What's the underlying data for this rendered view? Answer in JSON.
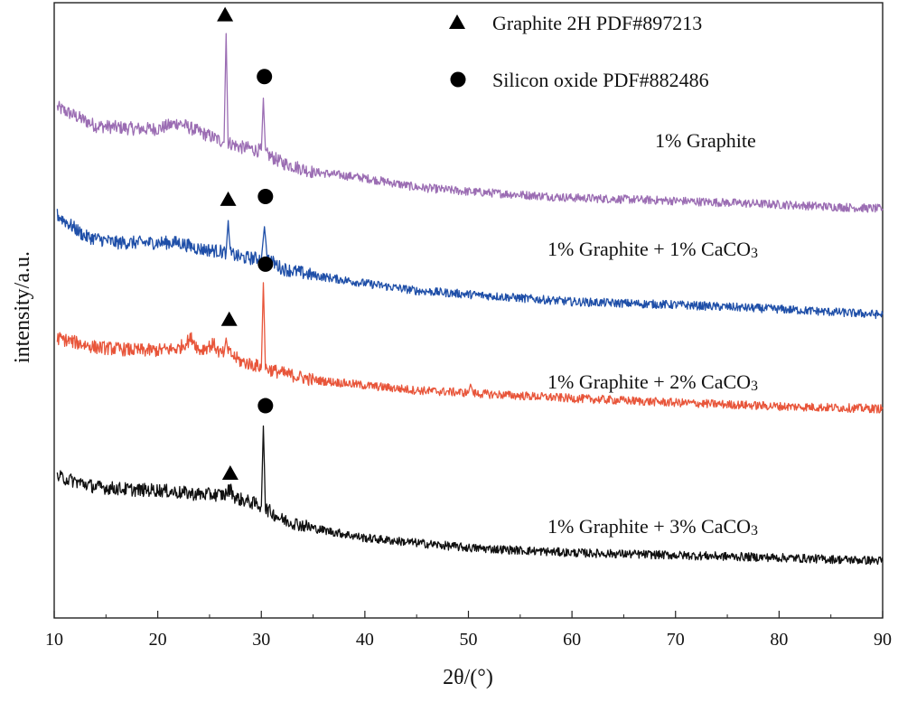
{
  "chart_data": {
    "type": "line",
    "title": "",
    "xlabel": "2θ/(°)",
    "ylabel": "intensity/a.u.",
    "xlim": [
      10,
      90
    ],
    "ylim": [
      0,
      100
    ],
    "x_ticks": [
      "10",
      "20",
      "30",
      "40",
      "50",
      "60",
      "70",
      "80",
      "90"
    ],
    "y_ticks_shown": false,
    "grid": false,
    "legend": {
      "position": "top-right",
      "entries": [
        {
          "marker": "triangle",
          "label": "Graphite 2H PDF#897213"
        },
        {
          "marker": "circle",
          "label": "Silicon oxide PDF#882486"
        }
      ]
    },
    "series": [
      {
        "name": "1% Graphite",
        "color": "#9b6db3",
        "points": [
          [
            10.3,
            83.0
          ],
          [
            14,
            80.0
          ],
          [
            18,
            79.5
          ],
          [
            20,
            79.5
          ],
          [
            22,
            80.5
          ],
          [
            24,
            79.0
          ],
          [
            25.5,
            78.0
          ],
          [
            26.4,
            77.3
          ],
          [
            26.6,
            95.0
          ],
          [
            26.8,
            77.3
          ],
          [
            28,
            76.5
          ],
          [
            29,
            76.3
          ],
          [
            29.5,
            76.0
          ],
          [
            30.0,
            76.0
          ],
          [
            30.2,
            84.5
          ],
          [
            30.4,
            75.5
          ],
          [
            32,
            74.0
          ],
          [
            35,
            72.5
          ],
          [
            40,
            71.5
          ],
          [
            45,
            70.0
          ],
          [
            50,
            69.3
          ],
          [
            60,
            68.3
          ],
          [
            70,
            67.8
          ],
          [
            80,
            67.2
          ],
          [
            90,
            66.5
          ]
        ],
        "label_text": "1% Graphite"
      },
      {
        "name": "1% Graphite + 1% CaCO3",
        "color": "#1f4fa8",
        "points": [
          [
            10.3,
            65.5
          ],
          [
            13,
            62.0
          ],
          [
            16,
            61.0
          ],
          [
            20,
            61.0
          ],
          [
            22,
            61.0
          ],
          [
            24,
            60.0
          ],
          [
            26.0,
            59.6
          ],
          [
            26.6,
            59.4
          ],
          [
            26.8,
            64.6
          ],
          [
            27.0,
            59.2
          ],
          [
            28,
            58.6
          ],
          [
            30.0,
            58.4
          ],
          [
            30.3,
            63.6
          ],
          [
            30.6,
            58.4
          ],
          [
            32,
            56.8
          ],
          [
            35,
            55.7
          ],
          [
            40,
            54.4
          ],
          [
            45,
            53.2
          ],
          [
            50,
            52.6
          ],
          [
            60,
            51.4
          ],
          [
            70,
            50.9
          ],
          [
            80,
            50.2
          ],
          [
            90,
            49.3
          ]
        ],
        "label_text": "1% Graphite + 1% CaCO3"
      },
      {
        "name": "1% Graphite + 2% CaCO3",
        "color": "#e8553a",
        "points": [
          [
            10.3,
            45.5
          ],
          [
            14,
            44.0
          ],
          [
            18,
            43.5
          ],
          [
            20,
            43.5
          ],
          [
            22,
            43.8
          ],
          [
            23.3,
            45.5
          ],
          [
            24,
            43.5
          ],
          [
            25.4,
            44.5
          ],
          [
            26.0,
            43.0
          ],
          [
            26.4,
            43.0
          ],
          [
            26.6,
            45.5
          ],
          [
            26.8,
            43.2
          ],
          [
            28,
            41.7
          ],
          [
            30.0,
            40.8
          ],
          [
            30.2,
            54.5
          ],
          [
            30.4,
            40.6
          ],
          [
            32,
            39.8
          ],
          [
            35,
            38.7
          ],
          [
            40,
            37.8
          ],
          [
            45,
            37.0
          ],
          [
            50,
            36.6
          ],
          [
            50.2,
            38.0
          ],
          [
            50.5,
            36.5
          ],
          [
            60,
            35.7
          ],
          [
            70,
            35.0
          ],
          [
            80,
            34.4
          ],
          [
            90,
            34.0
          ]
        ],
        "label_text": "1% Graphite + 2% CaCO3"
      },
      {
        "name": "1% Graphite + 3% CaCO3",
        "color": "#111111",
        "points": [
          [
            10.3,
            23.0
          ],
          [
            14,
            21.3
          ],
          [
            18,
            20.8
          ],
          [
            20,
            20.8
          ],
          [
            22,
            20.4
          ],
          [
            24,
            20.1
          ],
          [
            26.5,
            20.0
          ],
          [
            27.0,
            21.0
          ],
          [
            27.5,
            19.5
          ],
          [
            29,
            18.8
          ],
          [
            30.0,
            18.2
          ],
          [
            30.2,
            31.2
          ],
          [
            30.4,
            17.8
          ],
          [
            32,
            16.0
          ],
          [
            35,
            14.6
          ],
          [
            40,
            13.0
          ],
          [
            45,
            12.2
          ],
          [
            50,
            11.4
          ],
          [
            60,
            10.6
          ],
          [
            70,
            10.2
          ],
          [
            80,
            9.8
          ],
          [
            90,
            9.3
          ]
        ],
        "label_text": "1% Graphite + 3% CaCO3"
      }
    ],
    "annotations": [
      {
        "series": 0,
        "marker": "triangle",
        "x": 26.5,
        "y": 98.0
      },
      {
        "series": 0,
        "marker": "circle",
        "x": 30.3,
        "y": 88.0
      },
      {
        "series": 1,
        "marker": "triangle",
        "x": 26.8,
        "y": 68.0
      },
      {
        "series": 1,
        "marker": "circle",
        "x": 30.4,
        "y": 68.5
      },
      {
        "series": 2,
        "marker": "triangle",
        "x": 26.9,
        "y": 48.5
      },
      {
        "series": 2,
        "marker": "circle",
        "x": 30.4,
        "y": 57.5
      },
      {
        "series": 3,
        "marker": "triangle",
        "x": 27.0,
        "y": 23.5
      },
      {
        "series": 3,
        "marker": "circle",
        "x": 30.4,
        "y": 34.5
      }
    ]
  }
}
